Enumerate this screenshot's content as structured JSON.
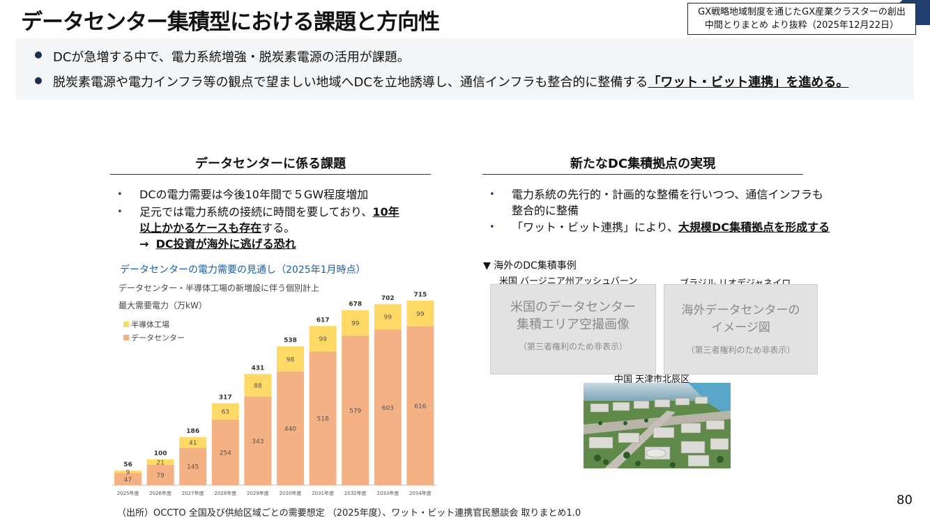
{
  "header": {
    "title": "データセンター集積型における課題と方向性",
    "source_line1": "GX戦略地域制度を通じたGX産業クラスターの創出",
    "source_line2": "中間とりまとめ より抜粋（2025年12月22日）"
  },
  "summary": {
    "bullet1": "DCが急増する中で、電力系統増強・脱炭素電源の活用が課題。",
    "bullet2_plain": "脱炭素電源や電力インフラ等の観点で望ましい地域へDCを立地誘導し、通信インフラも整合的に整備する",
    "bullet2_emph": "「ワット・ビット連携」を進める。"
  },
  "left_section": {
    "heading": "データセンターに係る課題",
    "bullet1": "DCの電力需要は今後10年間で５GW程度増加",
    "bullet2_a": "足元では電力系統の接続に時間を要しており、",
    "bullet2_b": "10年",
    "bullet2_c": "以上かかるケースも存在",
    "bullet2_d": "する。",
    "arrow": "→",
    "bullet2_e": "DC投資が海外に逃げる恐れ"
  },
  "right_section": {
    "heading": "新たなDC集積拠点の実現",
    "bullet1": "電力系統の先行的・計画的な整備を行いつつ、通信インフラも整合的に整備",
    "bullet2_a": "「ワット・ビット連携」により、",
    "bullet2_b": "大規模DC集積拠点を形成する"
  },
  "cases": {
    "heading": "▼ 海外のDC集積事例",
    "cap_us": "米国 バージニア州アッシュバーン",
    "cap_br": "ブラジル リオデジャネイロ",
    "cap_cn": "中国 天津市北辰区",
    "ph1_l1": "米国のデータセンター",
    "ph1_l2": "集積エリア空撮画像",
    "ph1_note": "（第三者権利のため非表示）",
    "ph2_l1": "海外データセンターの",
    "ph2_l2": "イメージ図",
    "ph2_note": "（第三者権利のため非表示）"
  },
  "chart_data": {
    "type": "bar",
    "stacked": true,
    "title": "データセンターの電力需要の見通し（2025年1月時点）",
    "subtitle": "データセンター・半導体工場の新増設に伴う個別計上",
    "ylabel": "最大需要電力（万kW）",
    "categories": [
      "2025年度",
      "2026年度",
      "2027年度",
      "2028年度",
      "2029年度",
      "2030年度",
      "2031年度",
      "2032年度",
      "2033年度",
      "2034年度"
    ],
    "series": [
      {
        "name": "データセンター",
        "color": "#f4b183",
        "values": [
          47,
          79,
          145,
          254,
          343,
          440,
          518,
          579,
          603,
          616
        ]
      },
      {
        "name": "半導体工場",
        "color": "#ffd966",
        "values": [
          9,
          21,
          41,
          63,
          88,
          98,
          99,
          99,
          99,
          99
        ]
      }
    ],
    "totals": [
      56,
      100,
      186,
      317,
      431,
      538,
      617,
      678,
      702,
      715
    ],
    "legend_position": "top-left",
    "ylim": [
      0,
      715
    ]
  },
  "footer": {
    "source": "（出所）OCCTO 全国及び供給区域ごとの需要想定 （2025年度）、ワット・ビット連携官民懇談会 取りまとめ1.0",
    "page": "80"
  }
}
